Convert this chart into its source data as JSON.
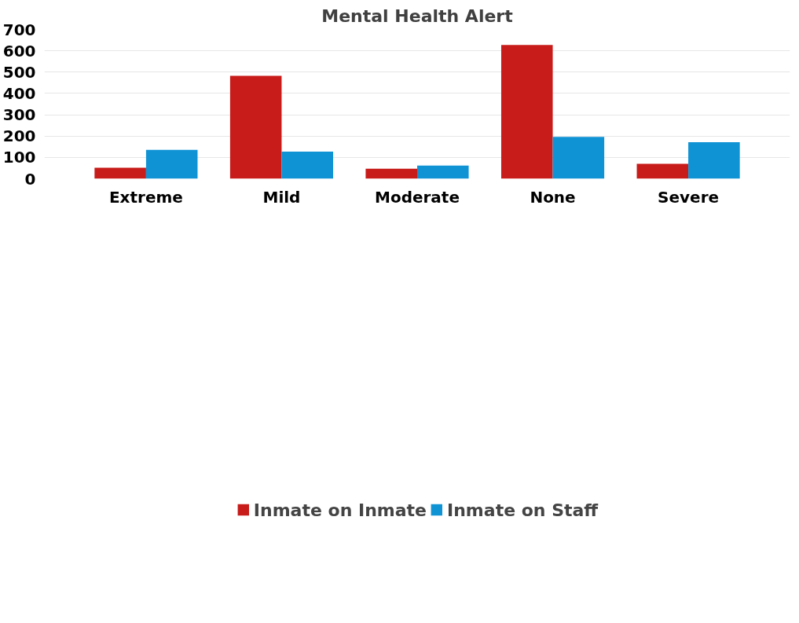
{
  "chart_data": {
    "type": "bar",
    "title": "Mental Health Alert",
    "categories": [
      "Extreme",
      "Mild",
      "Moderate",
      "None",
      "Severe"
    ],
    "series": [
      {
        "name": "Inmate on Inmate",
        "color": "#c71c1a",
        "values": [
          52,
          483,
          47,
          627,
          70
        ]
      },
      {
        "name": "Inmate on Staff",
        "color": "#0f93d5",
        "values": [
          135,
          127,
          62,
          196,
          171
        ]
      }
    ],
    "ylim": [
      0,
      700
    ],
    "yticks": [
      0,
      100,
      200,
      300,
      400,
      500,
      600,
      700
    ],
    "grid": "y",
    "legend": "bottom"
  }
}
